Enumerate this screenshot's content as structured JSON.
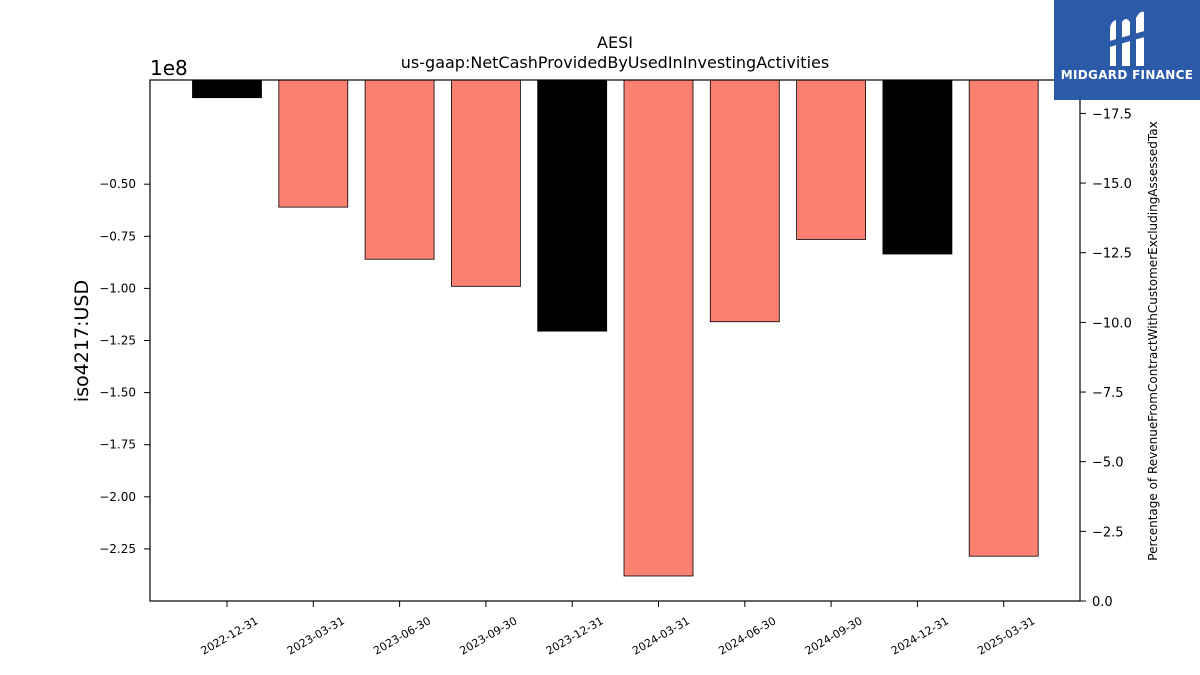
{
  "chart_data": {
    "type": "bar",
    "title": "AESI",
    "subtitle": "us-gaap:NetCashProvidedByUsedInInvestingActivities",
    "ylabel": "iso4217:USD",
    "y_offset_label": "1e8",
    "y2label": "Percentage of RevenueFromContractWithCustomerExcludingAssessedTax",
    "categories": [
      "2022-12-31",
      "2023-03-31",
      "2023-06-30",
      "2023-09-30",
      "2023-12-31",
      "2024-03-31",
      "2024-06-30",
      "2024-09-30",
      "2024-12-31",
      "2025-03-31"
    ],
    "values": [
      -8500000,
      -61000000,
      -86000000,
      -99000000,
      -120500000,
      -238000000,
      -116000000,
      -76500000,
      -83500000,
      -228500000
    ],
    "bar_colors": [
      "#000000",
      "#fa8072",
      "#fa8072",
      "#fa8072",
      "#000000",
      "#fa8072",
      "#fa8072",
      "#fa8072",
      "#000000",
      "#fa8072"
    ],
    "ylim": [
      -250000000,
      0
    ],
    "y_ticks": [
      -50000000,
      -75000000,
      -100000000,
      -125000000,
      -150000000,
      -175000000,
      -200000000,
      -225000000
    ],
    "y_tick_labels": [
      "−0.50",
      "−0.75",
      "−1.00",
      "−1.25",
      "−1.50",
      "−1.75",
      "−2.00",
      "−2.25"
    ],
    "y2lim": [
      0,
      -18.7
    ],
    "y2_ticks": [
      -17.5,
      -15.0,
      -12.5,
      -10.0,
      -7.5,
      -5.0,
      -2.5,
      0.0
    ],
    "y2_tick_labels": [
      "−17.5",
      "−15.0",
      "−12.5",
      "−10.0",
      "−7.5",
      "−5.0",
      "−2.5",
      "0.0"
    ],
    "grid": false
  },
  "logo": {
    "text": "MIDGARD FINANCE"
  }
}
